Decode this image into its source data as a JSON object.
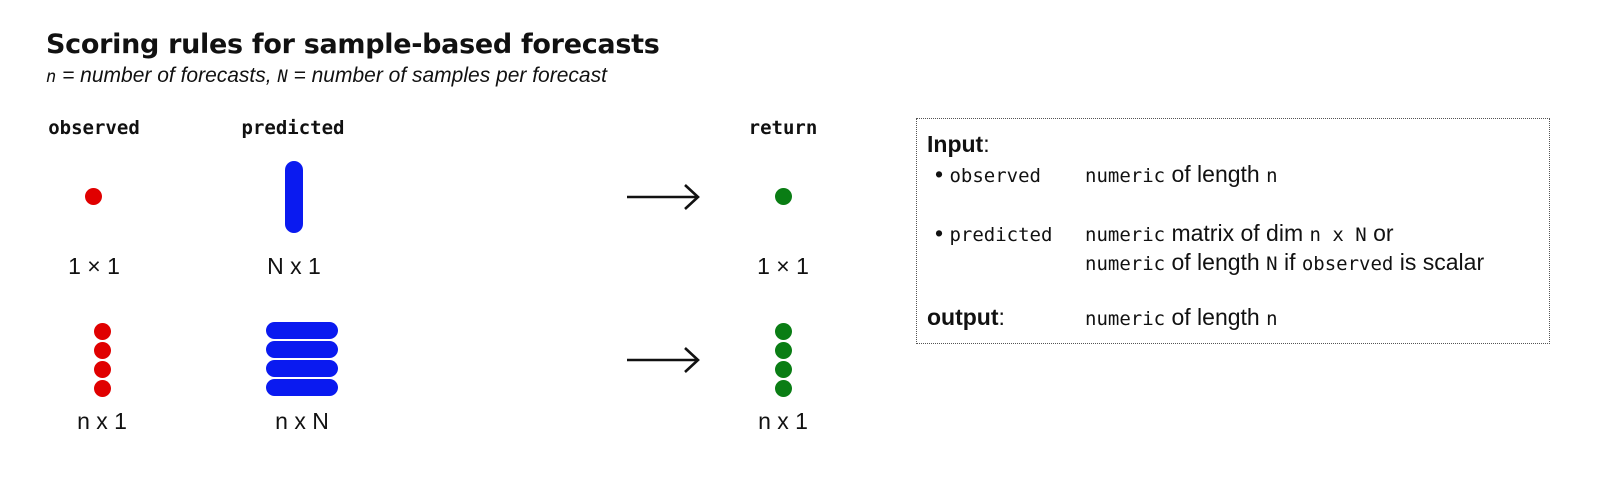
{
  "title": "Scoring rules for sample-based forecasts",
  "subtitle": {
    "n_sym": "n",
    "n_text": " = number of forecasts, ",
    "N_sym": "N",
    "N_text": " = number of samples per forecast"
  },
  "columns": {
    "observed": "observed",
    "predicted": "predicted",
    "return": "return"
  },
  "rows": [
    {
      "observed_dim": "1 × 1",
      "predicted_dim": "N x 1",
      "return_dim": "1 × 1",
      "observed_count": 1,
      "predicted_bars": 1,
      "return_count": 1
    },
    {
      "observed_dim": "n x 1",
      "predicted_dim": "n x N",
      "return_dim": "n x 1",
      "observed_count": 4,
      "predicted_bars": 4,
      "return_count": 4
    }
  ],
  "colors": {
    "observed": "#e00000",
    "predicted": "#0a1af0",
    "return": "#0a7d14",
    "arrow": "#111111"
  },
  "icons": {
    "arrow": "right-arrow-icon",
    "observed_point": "red-dot-icon",
    "predicted_sample": "blue-bar-icon",
    "return_point": "green-dot-icon"
  },
  "info": {
    "input_label": "Input",
    "input_colon": ":",
    "observed": {
      "bullet": "•",
      "name": "observed",
      "type": "numeric",
      "text": " of length ",
      "len": "n"
    },
    "predicted": {
      "bullet": "•",
      "name": "predicted",
      "line1_type": "numeric",
      "line1_text": " matrix of dim ",
      "line1_dim": "n x N",
      "line1_or": " or",
      "line2_type": "numeric",
      "line2_text": " of length ",
      "line2_len": "N",
      "line2_if": " if ",
      "line2_obs": "observed",
      "line2_end": " is scalar"
    },
    "output_label": "output",
    "output_colon": ":",
    "output": {
      "type": "numeric",
      "text": " of length ",
      "len": "n"
    }
  }
}
